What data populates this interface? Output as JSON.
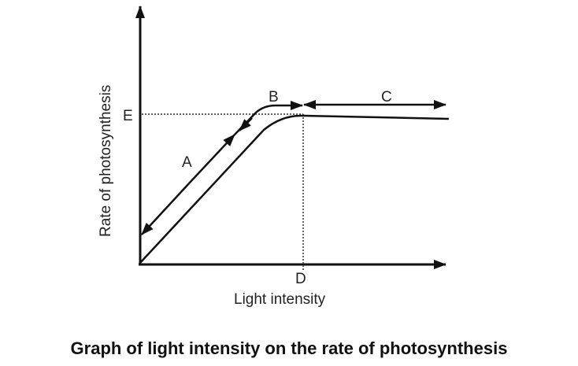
{
  "diagram": {
    "y_axis_label": "Rate of photosynthesis",
    "x_axis_label": "Light intensity",
    "points": {
      "A": "A",
      "B": "B",
      "C": "C",
      "D": "D",
      "E": "E"
    }
  },
  "caption": "Graph of light intensity on the rate of photosynthesis"
}
